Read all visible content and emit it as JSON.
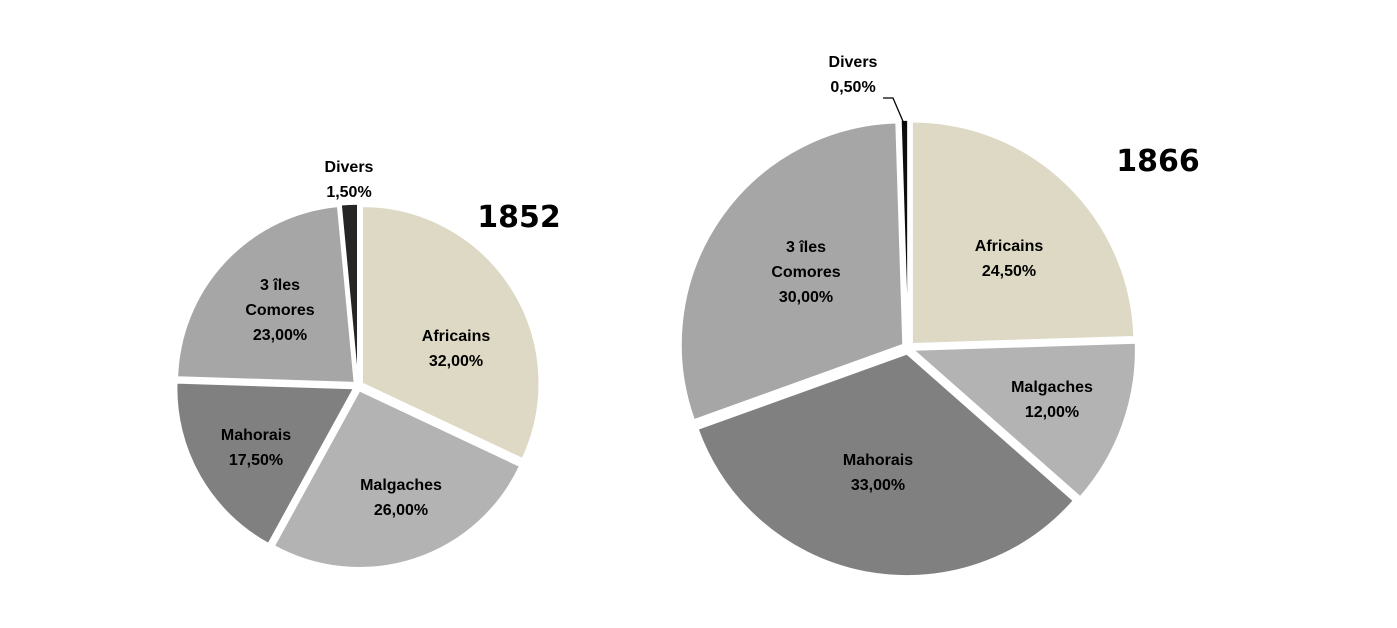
{
  "chart_data": [
    {
      "type": "pie",
      "title": "1852",
      "slices": [
        {
          "name": "Africains",
          "value": 32.0,
          "label": "32,00%",
          "color": "#DDD9C4"
        },
        {
          "name": "Malgaches",
          "value": 26.0,
          "label": "26,00%",
          "color": "#B3B3B3"
        },
        {
          "name": "Mahorais",
          "value": 17.5,
          "label": "17,50%",
          "color": "#808080"
        },
        {
          "name": "3 îles Comores",
          "value": 23.0,
          "label": "23,00%",
          "color": "#A6A6A6"
        },
        {
          "name": "Divers",
          "value": 1.5,
          "label": "1,50%",
          "color": "#262626"
        }
      ]
    },
    {
      "type": "pie",
      "title": "1866",
      "slices": [
        {
          "name": "Africains",
          "value": 24.5,
          "label": "24,50%",
          "color": "#DDD9C4"
        },
        {
          "name": "Malgaches",
          "value": 12.0,
          "label": "12,00%",
          "color": "#B3B3B3"
        },
        {
          "name": "Mahorais",
          "value": 33.0,
          "label": "33,00%",
          "color": "#808080"
        },
        {
          "name": "3 îles Comores",
          "value": 30.0,
          "label": "30,00%",
          "color": "#A6A6A6"
        },
        {
          "name": "Divers",
          "value": 0.5,
          "label": "0,50%",
          "color": "#0D0D0D"
        }
      ]
    }
  ]
}
